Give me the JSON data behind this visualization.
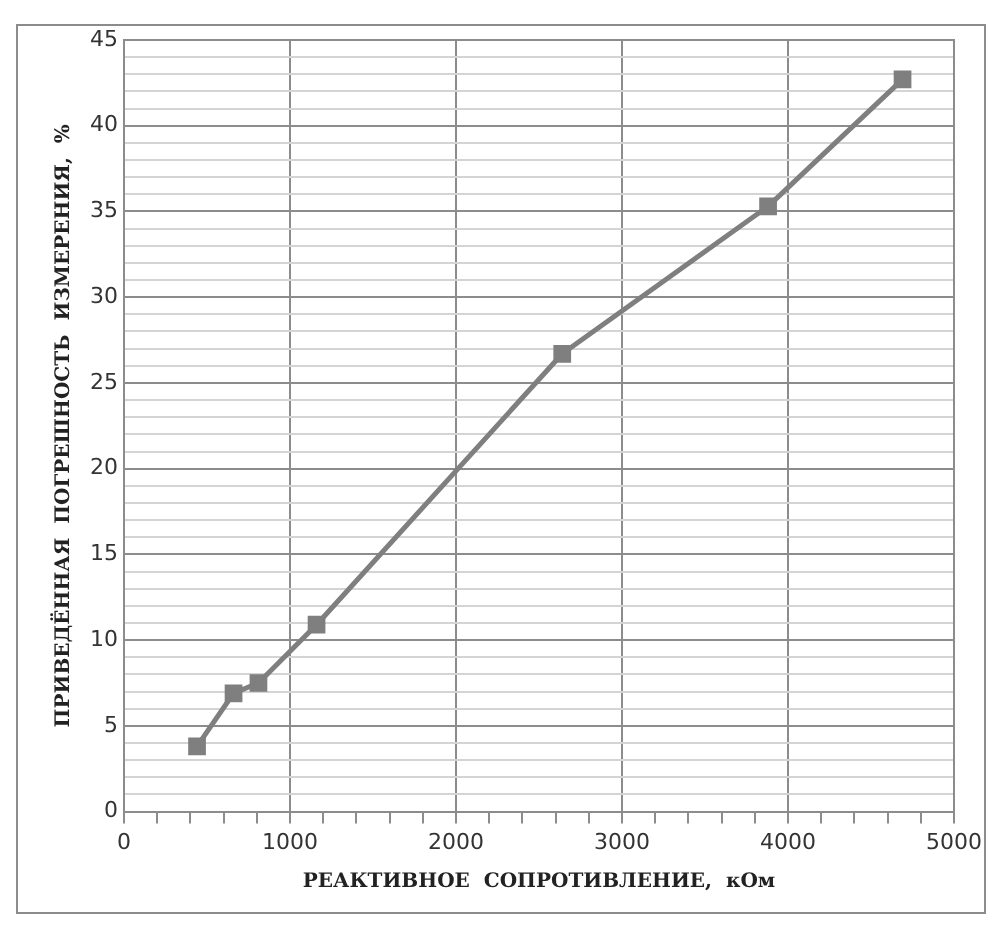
{
  "chart_data": {
    "type": "line",
    "xlabel": "РЕАКТИВНОЕ  СОПРОТИВЛЕНИЕ,  кОм",
    "ylabel": "ПРИВЕДЁННАЯ  ПОГРЕШНОСТЬ  ИЗМЕРЕНИЯ,  %",
    "x": [
      440,
      660,
      810,
      1160,
      2640,
      3880,
      4690
    ],
    "series": [
      {
        "color": "#7f7f7f",
        "values": [
          3.8,
          6.9,
          7.5,
          10.9,
          26.7,
          35.3,
          42.7
        ]
      }
    ],
    "xlim": [
      0,
      5000
    ],
    "ylim": [
      0,
      45
    ],
    "xticks": [
      0,
      {
        "value": 200,
        "label": null
      },
      {
        "value": 400,
        "label": null
      },
      {
        "value": 600,
        "label": null
      },
      {
        "value": 800,
        "label": null
      },
      1000,
      {
        "value": 1200,
        "label": null
      },
      {
        "value": 1400,
        "label": null
      },
      {
        "value": 1600,
        "label": null
      },
      {
        "value": 1800,
        "label": null
      },
      2000,
      {
        "value": 2200,
        "label": null
      },
      {
        "value": 2400,
        "label": null
      },
      {
        "value": 2600,
        "label": null
      },
      {
        "value": 2800,
        "label": null
      },
      3000,
      {
        "value": 3200,
        "label": null
      },
      {
        "value": 3400,
        "label": null
      },
      {
        "value": 3600,
        "label": null
      },
      {
        "value": 3800,
        "label": null
      },
      4000,
      {
        "value": 4200,
        "label": null
      },
      {
        "value": 4400,
        "label": null
      },
      {
        "value": 4600,
        "label": null
      },
      {
        "value": 4800,
        "label": null
      },
      5000
    ],
    "yticks": [
      0,
      {
        "value": 1,
        "label": null
      },
      {
        "value": 2,
        "label": null
      },
      {
        "value": 3,
        "label": null
      },
      {
        "value": 4,
        "label": null
      },
      5,
      {
        "value": 6,
        "label": null
      },
      {
        "value": 7,
        "label": null
      },
      {
        "value": 8,
        "label": null
      },
      {
        "value": 9,
        "label": null
      },
      10,
      {
        "value": 11,
        "label": null
      },
      {
        "value": 12,
        "label": null
      },
      {
        "value": 13,
        "label": null
      },
      {
        "value": 14,
        "label": null
      },
      15,
      {
        "value": 16,
        "label": null
      },
      {
        "value": 17,
        "label": null
      },
      {
        "value": 18,
        "label": null
      },
      {
        "value": 19,
        "label": null
      },
      20,
      {
        "value": 21,
        "label": null
      },
      {
        "value": 22,
        "label": null
      },
      {
        "value": 23,
        "label": null
      },
      {
        "value": 24,
        "label": null
      },
      25,
      {
        "value": 26,
        "label": null
      },
      {
        "value": 27,
        "label": null
      },
      {
        "value": 28,
        "label": null
      },
      {
        "value": 29,
        "label": null
      },
      30,
      {
        "value": 31,
        "label": null
      },
      {
        "value": 32,
        "label": null
      },
      {
        "value": 33,
        "label": null
      },
      {
        "value": 34,
        "label": null
      },
      35,
      {
        "value": 36,
        "label": null
      },
      {
        "value": 37,
        "label": null
      },
      {
        "value": 38,
        "label": null
      },
      {
        "value": 39,
        "label": null
      },
      40,
      {
        "value": 41,
        "label": null
      },
      {
        "value": 42,
        "label": null
      },
      {
        "value": 43,
        "label": null
      },
      {
        "value": 44,
        "label": null
      },
      45
    ],
    "grid": "y_and_x_major",
    "marker": "square",
    "line_style": "solid",
    "legend": false
  }
}
